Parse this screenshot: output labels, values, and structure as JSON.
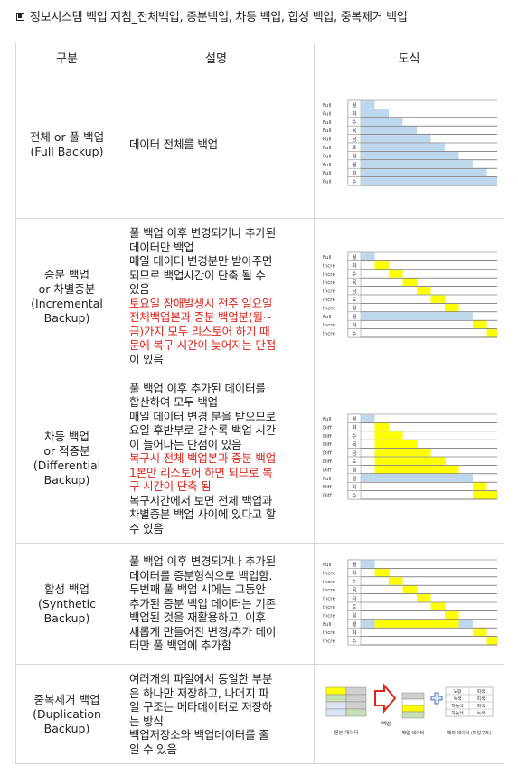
{
  "title": "정보시스템 백업 지침_전체백업, 증분백업, 차등 백업, 합성 백업, 중복제거 백업",
  "headers": {
    "col1": "구분",
    "col2": "설명",
    "col3": "도식"
  },
  "rows": [
    {
      "name_ko": "전체 or 풀 백업",
      "name_en": "(Full Backup)",
      "desc": [
        "데이터 전체를 백업"
      ],
      "desc_red": [],
      "desc_after": [],
      "diagram": {
        "labels": [
          "Full",
          "Full",
          "Full",
          "Full",
          "Full",
          "Full",
          "Full",
          "Full",
          "Full",
          "Full"
        ],
        "days": [
          "월",
          "화",
          "수",
          "목",
          "금",
          "토",
          "일",
          "월",
          "화",
          "수"
        ]
      }
    },
    {
      "name_ko": "증분 백업",
      "name_en": "or 차별증분",
      "name_en2": "(Incremental",
      "name_en3": "Backup)",
      "desc": [
        "풀 백업 이후 변경되거나 추가된",
        "데이터만 백업",
        "매일 데이터 변경분만 받아주면",
        "되므로 백업시간이 단축 될 수",
        "있음"
      ],
      "desc_red": [
        "토요일 장애발생시 전주 일요일",
        "전체백업본과 증분 백업분(월~",
        "금)가지 모두 리스토어 하기 때",
        "문에 복구 시간이 늦어지는 단점"
      ],
      "desc_after": [
        "이 있음"
      ],
      "diagram": {
        "labels": [
          "Full",
          "Incre",
          "Incre",
          "Incre",
          "Incre",
          "Incre",
          "Incre",
          "Full",
          "Incre",
          "Incre"
        ],
        "days": [
          "월",
          "화",
          "수",
          "목",
          "금",
          "토",
          "일",
          "월",
          "화",
          "수"
        ]
      }
    },
    {
      "name_ko": "차등 백업",
      "name_en": "or 적증분",
      "name_en2": "(Differential",
      "name_en3": "Backup)",
      "desc": [
        "풀 백업 이후 추가된 데이터를",
        "합산하여 모두 백업",
        "매일 데이터 변경 분을 받으므로",
        "요일 후반부로 갈수록 백업 시간",
        "이 늘어나는 단점이 있음"
      ],
      "desc_red": [
        "복구시 전체 백업본과 증분 백업",
        "1본만 리스토어 하면 되므로 복",
        "구 시간이 단축 됨"
      ],
      "desc_after": [
        "복구시간에서 보면 전체 백업과",
        "차별증분 백업 사이에 있다고 할",
        "수 있음"
      ],
      "diagram": {
        "labels": [
          "Full",
          "Diff",
          "Diff",
          "Diff",
          "Diff",
          "Diff",
          "Diff",
          "Full",
          "Diff",
          "Diff"
        ],
        "days": [
          "월",
          "화",
          "수",
          "목",
          "금",
          "토",
          "일",
          "월",
          "화",
          "수"
        ]
      }
    },
    {
      "name_ko": "합성 백업",
      "name_en": "(Synthetic",
      "name_en2": "Backup)",
      "desc": [
        "풀 백업 이후 변경되거나 추가된",
        "데이터를 증분형식으로 백업함.",
        "두번째 풀 백업 시에는 그동안",
        "추가된 증분 백업 데이터는 기존",
        "백업된 것을 재활용하고, 이후",
        "새롭게 만들어진 변경/추가 데이",
        "터만 풀 백업에 추가함"
      ],
      "desc_red": [],
      "desc_after": [],
      "diagram": {
        "labels": [
          "Full",
          "Incre",
          "Incre",
          "Incre",
          "Incre",
          "Incre",
          "Incre",
          "Full",
          "Incre",
          "Incre"
        ],
        "days": [
          "월",
          "화",
          "수",
          "목",
          "금",
          "토",
          "일",
          "월",
          "화",
          "수"
        ]
      }
    },
    {
      "name_ko": "중복제거 백업",
      "name_en": "(Duplication",
      "name_en2": "Backup)",
      "desc": [
        "여러개의 파일에서 동일한 부분",
        "은 하나만 저장하고, 나머지 파",
        "일 구조는 메타데이터로 저장하",
        "는 방식",
        "백업저장소와 백업데이터를 줄",
        "일 수 있음"
      ],
      "desc_red": [],
      "desc_after": [],
      "dedup": {
        "cap1": "원본 데이터",
        "cap2": "백업",
        "cap3": "백업 데이터",
        "cap4": "메타 데이터 (파일구조)",
        "meta": [
          [
            "노랑",
            "회색"
          ],
          [
            "녹색",
            "회색"
          ],
          [
            "하늘색",
            "회색"
          ],
          [
            "하늘색",
            "녹색"
          ]
        ]
      }
    }
  ],
  "colors": {
    "blue": "#bdd7ee",
    "yellow": "#ffff00",
    "red": "#e0241b",
    "green": "#c6e0b4",
    "gray": "#d0cece",
    "lightblue": "#dae3f3"
  }
}
